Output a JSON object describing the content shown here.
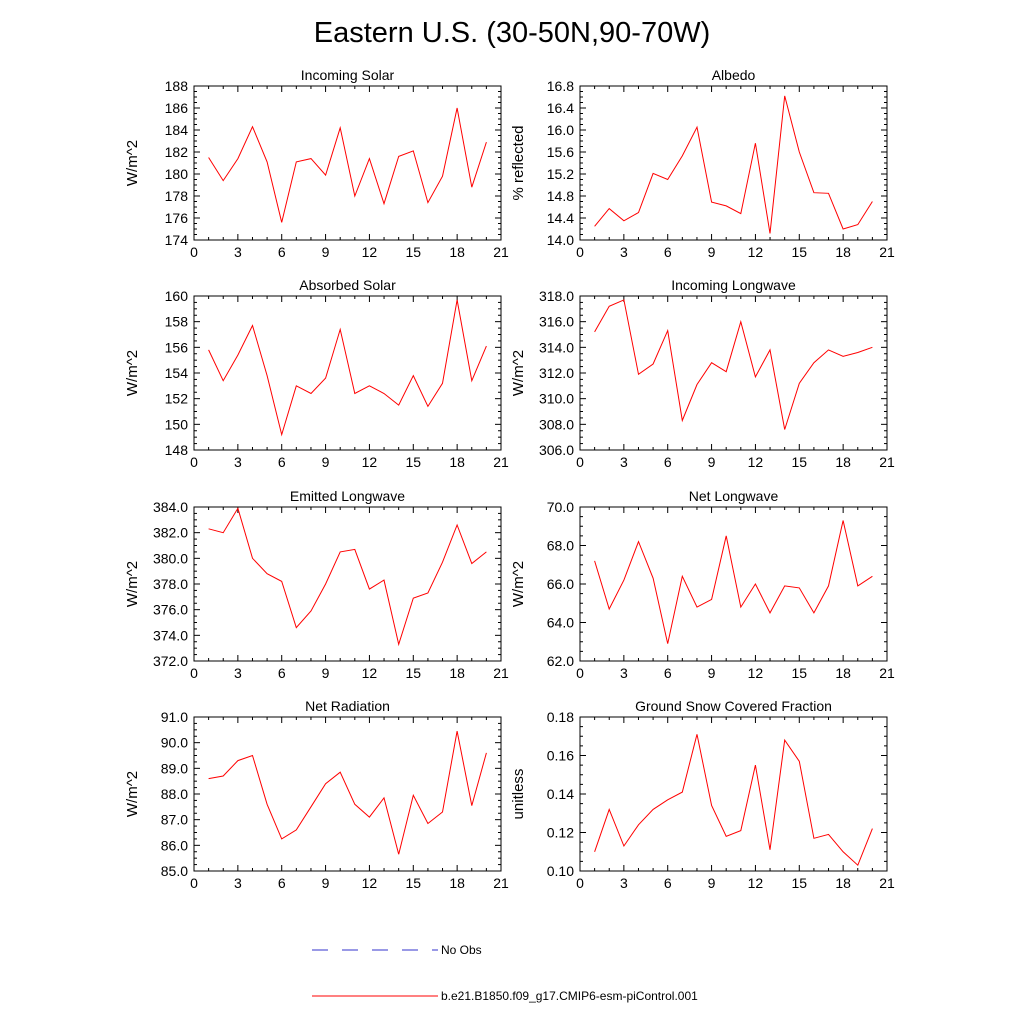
{
  "figure": {
    "title": "Eastern U.S. (30-50N,90-70W)"
  },
  "legend": [
    {
      "label": "No Obs",
      "color": "#3333cc",
      "style": "dashed"
    },
    {
      "label": "b.e21.B1850.f09_g17.CMIP6-esm-piControl.001",
      "color": "#ff0000",
      "style": "solid"
    }
  ],
  "chart_data": [
    {
      "type": "line",
      "title": "Incoming Solar",
      "ylabel": "W/m^2",
      "xlim": [
        0,
        21
      ],
      "xticks": [
        0,
        3,
        6,
        9,
        12,
        15,
        18,
        21
      ],
      "ylim": [
        174,
        188
      ],
      "yticks": [
        174,
        176,
        178,
        180,
        182,
        184,
        186,
        188
      ],
      "ytick_labels": [
        "174",
        "176",
        "178",
        "180",
        "182",
        "184",
        "186",
        "188"
      ],
      "series": [
        {
          "name": "b.e21.B1850.f09_g17.CMIP6-esm-piControl.001",
          "color": "#ff0000",
          "x": [
            1,
            2,
            3,
            4,
            5,
            6,
            7,
            8,
            9,
            10,
            11,
            12,
            13,
            14,
            15,
            16,
            17,
            18,
            19,
            20
          ],
          "values": [
            181.5,
            179.4,
            181.4,
            184.3,
            181.1,
            175.6,
            181.1,
            181.4,
            179.9,
            184.2,
            178.0,
            181.4,
            177.3,
            181.6,
            182.1,
            177.4,
            179.8,
            186.0,
            178.8,
            182.9
          ]
        }
      ]
    },
    {
      "type": "line",
      "title": "Albedo",
      "ylabel": "% reflected",
      "xlim": [
        0,
        21
      ],
      "xticks": [
        0,
        3,
        6,
        9,
        12,
        15,
        18,
        21
      ],
      "ylim": [
        14.0,
        16.8
      ],
      "yticks": [
        14.0,
        14.4,
        14.8,
        15.2,
        15.6,
        16.0,
        16.4,
        16.8
      ],
      "ytick_labels": [
        "14.0",
        "14.4",
        "14.8",
        "15.2",
        "15.6",
        "16.0",
        "16.4",
        "16.8"
      ],
      "series": [
        {
          "name": "b.e21.B1850.f09_g17.CMIP6-esm-piControl.001",
          "color": "#ff0000",
          "x": [
            1,
            2,
            3,
            4,
            5,
            6,
            7,
            8,
            9,
            10,
            11,
            12,
            13,
            14,
            15,
            16,
            17,
            18,
            19,
            20
          ],
          "values": [
            14.25,
            14.57,
            14.35,
            14.5,
            15.21,
            15.1,
            15.53,
            16.05,
            14.69,
            14.62,
            14.48,
            15.76,
            14.12,
            16.62,
            15.6,
            14.86,
            14.85,
            14.2,
            14.28,
            14.7
          ]
        }
      ]
    },
    {
      "type": "line",
      "title": "Absorbed Solar",
      "ylabel": "W/m^2",
      "xlim": [
        0,
        21
      ],
      "xticks": [
        0,
        3,
        6,
        9,
        12,
        15,
        18,
        21
      ],
      "ylim": [
        148,
        160
      ],
      "yticks": [
        148,
        150,
        152,
        154,
        156,
        158,
        160
      ],
      "ytick_labels": [
        "148",
        "150",
        "152",
        "154",
        "156",
        "158",
        "160"
      ],
      "series": [
        {
          "name": "b.e21.B1850.f09_g17.CMIP6-esm-piControl.001",
          "color": "#ff0000",
          "x": [
            1,
            2,
            3,
            4,
            5,
            6,
            7,
            8,
            9,
            10,
            11,
            12,
            13,
            14,
            15,
            16,
            17,
            18,
            19,
            20
          ],
          "values": [
            155.8,
            153.4,
            155.4,
            157.7,
            153.8,
            149.2,
            153.0,
            152.4,
            153.6,
            157.4,
            152.4,
            153.0,
            152.4,
            151.5,
            153.8,
            151.4,
            153.2,
            159.7,
            153.4,
            156.1
          ]
        }
      ]
    },
    {
      "type": "line",
      "title": "Incoming Longwave",
      "ylabel": "W/m^2",
      "xlim": [
        0,
        21
      ],
      "xticks": [
        0,
        3,
        6,
        9,
        12,
        15,
        18,
        21
      ],
      "ylim": [
        306,
        318
      ],
      "yticks": [
        306,
        308,
        310,
        312,
        314,
        316,
        318
      ],
      "ytick_labels": [
        "306.0",
        "308.0",
        "310.0",
        "312.0",
        "314.0",
        "316.0",
        "318.0"
      ],
      "series": [
        {
          "name": "b.e21.B1850.f09_g17.CMIP6-esm-piControl.001",
          "color": "#ff0000",
          "x": [
            1,
            2,
            3,
            4,
            5,
            6,
            7,
            8,
            9,
            10,
            11,
            12,
            13,
            14,
            15,
            16,
            17,
            18,
            19,
            20
          ],
          "values": [
            315.2,
            317.2,
            317.7,
            311.9,
            312.7,
            315.3,
            308.3,
            311.1,
            312.8,
            312.1,
            316.0,
            311.7,
            313.8,
            307.6,
            311.2,
            312.8,
            313.8,
            313.3,
            313.6,
            314.0
          ]
        }
      ]
    },
    {
      "type": "line",
      "title": "Emitted Longwave",
      "ylabel": "W/m^2",
      "xlim": [
        0,
        21
      ],
      "xticks": [
        0,
        3,
        6,
        9,
        12,
        15,
        18,
        21
      ],
      "ylim": [
        372,
        384
      ],
      "yticks": [
        372,
        374,
        376,
        378,
        380,
        382,
        384
      ],
      "ytick_labels": [
        "372.0",
        "374.0",
        "376.0",
        "378.0",
        "380.0",
        "382.0",
        "384.0"
      ],
      "series": [
        {
          "name": "b.e21.B1850.f09_g17.CMIP6-esm-piControl.001",
          "color": "#ff0000",
          "x": [
            1,
            2,
            3,
            4,
            5,
            6,
            7,
            8,
            9,
            10,
            11,
            12,
            13,
            14,
            15,
            16,
            17,
            18,
            19,
            20
          ],
          "values": [
            382.3,
            382.0,
            383.9,
            380.0,
            378.8,
            378.2,
            374.6,
            375.9,
            378.0,
            380.5,
            380.7,
            377.6,
            378.3,
            373.3,
            376.9,
            377.3,
            379.7,
            382.6,
            379.6,
            380.5
          ]
        }
      ]
    },
    {
      "type": "line",
      "title": "Net Longwave",
      "ylabel": "W/m^2",
      "xlim": [
        0,
        21
      ],
      "xticks": [
        0,
        3,
        6,
        9,
        12,
        15,
        18,
        21
      ],
      "ylim": [
        62,
        70
      ],
      "yticks": [
        62,
        64,
        66,
        68,
        70
      ],
      "ytick_labels": [
        "62.0",
        "64.0",
        "66.0",
        "68.0",
        "70.0"
      ],
      "series": [
        {
          "name": "b.e21.B1850.f09_g17.CMIP6-esm-piControl.001",
          "color": "#ff0000",
          "x": [
            1,
            2,
            3,
            4,
            5,
            6,
            7,
            8,
            9,
            10,
            11,
            12,
            13,
            14,
            15,
            16,
            17,
            18,
            19,
            20
          ],
          "values": [
            67.2,
            64.7,
            66.2,
            68.2,
            66.3,
            62.9,
            66.4,
            64.8,
            65.2,
            68.5,
            64.8,
            66.0,
            64.5,
            65.9,
            65.8,
            64.5,
            65.9,
            69.3,
            65.9,
            66.4
          ]
        }
      ]
    },
    {
      "type": "line",
      "title": "Net Radiation",
      "ylabel": "W/m^2",
      "xlim": [
        0,
        21
      ],
      "xticks": [
        0,
        3,
        6,
        9,
        12,
        15,
        18,
        21
      ],
      "ylim": [
        85,
        91
      ],
      "yticks": [
        85,
        86,
        87,
        88,
        89,
        90,
        91
      ],
      "ytick_labels": [
        "85.0",
        "86.0",
        "87.0",
        "88.0",
        "89.0",
        "90.0",
        "91.0"
      ],
      "series": [
        {
          "name": "b.e21.B1850.f09_g17.CMIP6-esm-piControl.001",
          "color": "#ff0000",
          "x": [
            1,
            2,
            3,
            4,
            5,
            6,
            7,
            8,
            9,
            10,
            11,
            12,
            13,
            14,
            15,
            16,
            17,
            18,
            19,
            20
          ],
          "values": [
            88.6,
            88.7,
            89.3,
            89.5,
            87.6,
            86.25,
            86.6,
            87.5,
            88.4,
            88.85,
            87.6,
            87.1,
            87.85,
            85.65,
            87.95,
            86.85,
            87.3,
            90.45,
            87.55,
            89.6
          ]
        }
      ]
    },
    {
      "type": "line",
      "title": "Ground Snow Covered Fraction",
      "ylabel": "unitless",
      "xlim": [
        0,
        21
      ],
      "xticks": [
        0,
        3,
        6,
        9,
        12,
        15,
        18,
        21
      ],
      "ylim": [
        0.1,
        0.18
      ],
      "yticks": [
        0.1,
        0.12,
        0.14,
        0.16,
        0.18
      ],
      "ytick_labels": [
        "0.10",
        "0.12",
        "0.14",
        "0.16",
        "0.18"
      ],
      "series": [
        {
          "name": "b.e21.B1850.f09_g17.CMIP6-esm-piControl.001",
          "color": "#ff0000",
          "x": [
            1,
            2,
            3,
            4,
            5,
            6,
            7,
            8,
            9,
            10,
            11,
            12,
            13,
            14,
            15,
            16,
            17,
            18,
            19,
            20
          ],
          "values": [
            0.11,
            0.132,
            0.113,
            0.124,
            0.132,
            0.137,
            0.141,
            0.171,
            0.134,
            0.118,
            0.121,
            0.155,
            0.111,
            0.168,
            0.157,
            0.117,
            0.119,
            0.11,
            0.103,
            0.122
          ]
        }
      ]
    }
  ]
}
